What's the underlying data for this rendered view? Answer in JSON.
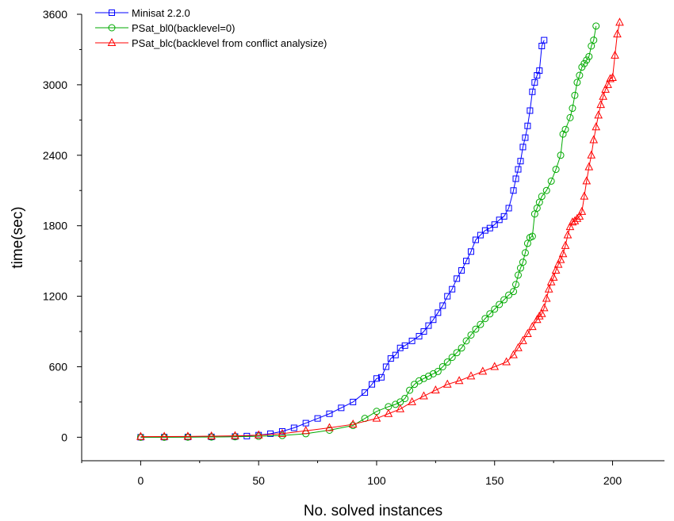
{
  "chart_data": {
    "type": "line",
    "title": "",
    "xlabel": "No. solved instances",
    "ylabel": "time(sec)",
    "xlim": [
      -25,
      222
    ],
    "ylim": [
      -200,
      3600
    ],
    "x_ticks": [
      "0",
      "50",
      "100",
      "150",
      "200"
    ],
    "y_ticks": [
      "0",
      "600",
      "1200",
      "1800",
      "2400",
      "3000",
      "3600"
    ],
    "grid": false,
    "legend_position": "top-left",
    "series": [
      {
        "name": "Minisat 2.2.0",
        "color": "#0000ff",
        "marker": "square",
        "points": [
          [
            0,
            0
          ],
          [
            10,
            1
          ],
          [
            20,
            2
          ],
          [
            30,
            3
          ],
          [
            40,
            6
          ],
          [
            45,
            10
          ],
          [
            50,
            18
          ],
          [
            55,
            30
          ],
          [
            60,
            50
          ],
          [
            65,
            80
          ],
          [
            70,
            120
          ],
          [
            75,
            160
          ],
          [
            80,
            200
          ],
          [
            85,
            250
          ],
          [
            90,
            300
          ],
          [
            95,
            380
          ],
          [
            98,
            450
          ],
          [
            100,
            500
          ],
          [
            102,
            510
          ],
          [
            104,
            600
          ],
          [
            106,
            670
          ],
          [
            108,
            700
          ],
          [
            110,
            760
          ],
          [
            112,
            780
          ],
          [
            115,
            820
          ],
          [
            118,
            860
          ],
          [
            120,
            900
          ],
          [
            122,
            950
          ],
          [
            124,
            1000
          ],
          [
            126,
            1060
          ],
          [
            128,
            1120
          ],
          [
            130,
            1200
          ],
          [
            132,
            1260
          ],
          [
            134,
            1350
          ],
          [
            136,
            1420
          ],
          [
            138,
            1500
          ],
          [
            140,
            1580
          ],
          [
            142,
            1680
          ],
          [
            144,
            1720
          ],
          [
            146,
            1760
          ],
          [
            148,
            1780
          ],
          [
            150,
            1810
          ],
          [
            152,
            1850
          ],
          [
            154,
            1880
          ],
          [
            156,
            1950
          ],
          [
            158,
            2100
          ],
          [
            159,
            2200
          ],
          [
            160,
            2280
          ],
          [
            161,
            2350
          ],
          [
            162,
            2470
          ],
          [
            163,
            2550
          ],
          [
            164,
            2650
          ],
          [
            165,
            2780
          ],
          [
            166,
            2940
          ],
          [
            167,
            3020
          ],
          [
            168,
            3080
          ],
          [
            169,
            3120
          ],
          [
            170,
            3330
          ],
          [
            171,
            3380
          ]
        ]
      },
      {
        "name": "PSat_bl0(backlevel=0)",
        "color": "#00aa00",
        "marker": "circle",
        "points": [
          [
            0,
            0
          ],
          [
            10,
            0
          ],
          [
            20,
            1
          ],
          [
            30,
            2
          ],
          [
            40,
            4
          ],
          [
            50,
            8
          ],
          [
            60,
            15
          ],
          [
            70,
            30
          ],
          [
            80,
            60
          ],
          [
            90,
            100
          ],
          [
            95,
            160
          ],
          [
            100,
            220
          ],
          [
            105,
            260
          ],
          [
            108,
            280
          ],
          [
            110,
            300
          ],
          [
            112,
            330
          ],
          [
            114,
            400
          ],
          [
            116,
            450
          ],
          [
            118,
            480
          ],
          [
            120,
            500
          ],
          [
            122,
            520
          ],
          [
            124,
            540
          ],
          [
            126,
            560
          ],
          [
            128,
            600
          ],
          [
            130,
            640
          ],
          [
            132,
            680
          ],
          [
            134,
            720
          ],
          [
            136,
            760
          ],
          [
            138,
            820
          ],
          [
            140,
            870
          ],
          [
            142,
            920
          ],
          [
            144,
            960
          ],
          [
            146,
            1010
          ],
          [
            148,
            1050
          ],
          [
            150,
            1090
          ],
          [
            152,
            1130
          ],
          [
            154,
            1170
          ],
          [
            156,
            1210
          ],
          [
            158,
            1240
          ],
          [
            159,
            1300
          ],
          [
            160,
            1380
          ],
          [
            161,
            1440
          ],
          [
            162,
            1490
          ],
          [
            163,
            1570
          ],
          [
            164,
            1650
          ],
          [
            165,
            1700
          ],
          [
            166,
            1710
          ],
          [
            167,
            1900
          ],
          [
            168,
            1950
          ],
          [
            169,
            2000
          ],
          [
            170,
            2050
          ],
          [
            172,
            2100
          ],
          [
            174,
            2180
          ],
          [
            176,
            2280
          ],
          [
            178,
            2400
          ],
          [
            179,
            2580
          ],
          [
            180,
            2620
          ],
          [
            182,
            2720
          ],
          [
            183,
            2800
          ],
          [
            184,
            2910
          ],
          [
            185,
            3020
          ],
          [
            186,
            3080
          ],
          [
            187,
            3150
          ],
          [
            188,
            3180
          ],
          [
            189,
            3210
          ],
          [
            190,
            3240
          ],
          [
            191,
            3330
          ],
          [
            192,
            3380
          ],
          [
            193,
            3500
          ]
        ]
      },
      {
        "name": "PSat_blc(backlevel from conflict analysize)",
        "color": "#ff0000",
        "marker": "triangle",
        "points": [
          [
            0,
            5
          ],
          [
            10,
            6
          ],
          [
            20,
            7
          ],
          [
            30,
            9
          ],
          [
            40,
            12
          ],
          [
            50,
            18
          ],
          [
            60,
            30
          ],
          [
            70,
            55
          ],
          [
            80,
            80
          ],
          [
            90,
            110
          ],
          [
            100,
            160
          ],
          [
            105,
            200
          ],
          [
            110,
            240
          ],
          [
            115,
            300
          ],
          [
            120,
            350
          ],
          [
            125,
            400
          ],
          [
            130,
            450
          ],
          [
            135,
            480
          ],
          [
            140,
            520
          ],
          [
            145,
            560
          ],
          [
            150,
            600
          ],
          [
            155,
            640
          ],
          [
            158,
            700
          ],
          [
            160,
            760
          ],
          [
            162,
            820
          ],
          [
            164,
            880
          ],
          [
            166,
            940
          ],
          [
            168,
            1000
          ],
          [
            169,
            1030
          ],
          [
            170,
            1050
          ],
          [
            171,
            1100
          ],
          [
            172,
            1180
          ],
          [
            173,
            1260
          ],
          [
            174,
            1320
          ],
          [
            175,
            1360
          ],
          [
            176,
            1420
          ],
          [
            177,
            1470
          ],
          [
            178,
            1510
          ],
          [
            179,
            1560
          ],
          [
            180,
            1630
          ],
          [
            181,
            1720
          ],
          [
            182,
            1790
          ],
          [
            183,
            1830
          ],
          [
            184,
            1840
          ],
          [
            185,
            1860
          ],
          [
            186,
            1880
          ],
          [
            187,
            1920
          ],
          [
            188,
            2050
          ],
          [
            189,
            2180
          ],
          [
            190,
            2300
          ],
          [
            191,
            2400
          ],
          [
            192,
            2530
          ],
          [
            193,
            2640
          ],
          [
            194,
            2740
          ],
          [
            195,
            2830
          ],
          [
            196,
            2900
          ],
          [
            197,
            2960
          ],
          [
            198,
            3000
          ],
          [
            199,
            3050
          ],
          [
            200,
            3060
          ],
          [
            201,
            3250
          ],
          [
            202,
            3430
          ],
          [
            203,
            3530
          ]
        ]
      }
    ]
  }
}
